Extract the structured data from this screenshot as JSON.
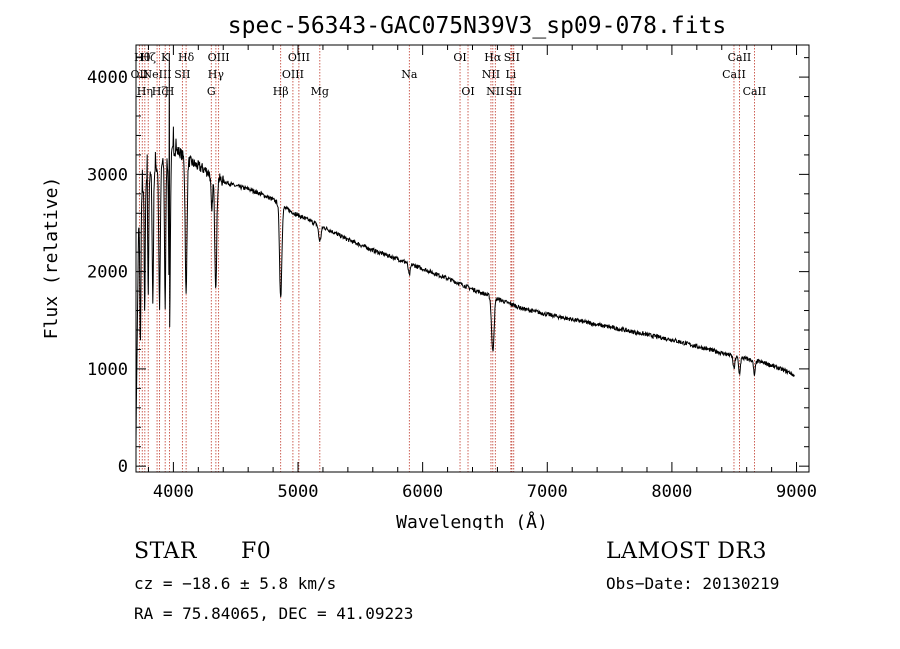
{
  "chart_data": {
    "type": "line",
    "title": "spec-56343-GAC075N39V3_sp09-078.fits",
    "xlabel": "Wavelength (Å)",
    "ylabel": "Flux (relative)",
    "xlim": [
      3700,
      9100
    ],
    "ylim": [
      -60,
      4330
    ],
    "xticks": [
      4000,
      5000,
      6000,
      7000,
      8000,
      9000
    ],
    "yticks": [
      0,
      1000,
      2000,
      3000,
      4000
    ],
    "continuum": [
      [
        3700,
        300
      ],
      [
        3720,
        2400
      ],
      [
        3750,
        2800
      ],
      [
        3800,
        2950
      ],
      [
        3850,
        3050
      ],
      [
        3900,
        3100
      ],
      [
        3950,
        3150
      ],
      [
        4000,
        3250
      ],
      [
        4050,
        3230
      ],
      [
        4100,
        3150
      ],
      [
        4150,
        3120
      ],
      [
        4200,
        3080
      ],
      [
        4250,
        3050
      ],
      [
        4300,
        3000
      ],
      [
        4400,
        2930
      ],
      [
        4500,
        2880
      ],
      [
        4600,
        2850
      ],
      [
        4700,
        2800
      ],
      [
        4800,
        2740
      ],
      [
        4900,
        2650
      ],
      [
        5000,
        2580
      ],
      [
        5200,
        2460
      ],
      [
        5400,
        2330
      ],
      [
        5600,
        2220
      ],
      [
        5800,
        2130
      ],
      [
        6000,
        2030
      ],
      [
        6200,
        1930
      ],
      [
        6400,
        1820
      ],
      [
        6600,
        1720
      ],
      [
        6800,
        1620
      ],
      [
        7000,
        1560
      ],
      [
        7500,
        1430
      ],
      [
        8000,
        1300
      ],
      [
        8500,
        1130
      ],
      [
        8750,
        1060
      ],
      [
        8950,
        960
      ],
      [
        8980,
        930
      ]
    ],
    "absorption": [
      {
        "center": 3735,
        "depth": 1400,
        "width": 4
      },
      {
        "center": 3770,
        "depth": 1300,
        "width": 4
      },
      {
        "center": 3798,
        "depth": 1200,
        "width": 4
      },
      {
        "center": 3835,
        "depth": 1350,
        "width": 5
      },
      {
        "center": 3889,
        "depth": 1450,
        "width": 6
      },
      {
        "center": 3934,
        "depth": 1500,
        "width": 5
      },
      {
        "center": 3969,
        "depth": 1800,
        "width": 6
      },
      {
        "center": 4102,
        "depth": 1400,
        "width": 7
      },
      {
        "center": 4308,
        "depth": 400,
        "width": 6
      },
      {
        "center": 4340,
        "depth": 1100,
        "width": 8
      },
      {
        "center": 4861,
        "depth": 950,
        "width": 9
      },
      {
        "center": 5175,
        "depth": 160,
        "width": 10
      },
      {
        "center": 5893,
        "depth": 120,
        "width": 8
      },
      {
        "center": 6563,
        "depth": 560,
        "width": 10
      },
      {
        "center": 8498,
        "depth": 130,
        "width": 7
      },
      {
        "center": 8542,
        "depth": 170,
        "width": 7
      },
      {
        "center": 8662,
        "depth": 150,
        "width": 7
      }
    ],
    "spikes": [
      {
        "x": 3968,
        "y": 4280
      },
      {
        "x": 3750,
        "y": 3100
      },
      {
        "x": 3790,
        "y": 3220
      },
      {
        "x": 3855,
        "y": 3210
      },
      {
        "x": 4000,
        "y": 3460
      },
      {
        "x": 4020,
        "y": 3400
      }
    ],
    "lines": [
      {
        "wave": 3727,
        "label": "OII",
        "row": 1
      },
      {
        "wave": 3750,
        "label": "Hθ",
        "row": 0
      },
      {
        "wave": 3771,
        "label": "Hη",
        "row": 2
      },
      {
        "wave": 3798,
        "label": "Hζ",
        "row": 0
      },
      {
        "wave": 3869,
        "label": "NeIII",
        "row": 1
      },
      {
        "wave": 3889,
        "label": "Hζ",
        "row": 2
      },
      {
        "wave": 3934,
        "label": "K",
        "row": 0
      },
      {
        "wave": 3969,
        "label": "H",
        "row": 2
      },
      {
        "wave": 4072,
        "label": "SII",
        "row": 1
      },
      {
        "wave": 4102,
        "label": "Hδ",
        "row": 0
      },
      {
        "wave": 4304,
        "label": "G",
        "row": 2
      },
      {
        "wave": 4341,
        "label": "Hγ",
        "row": 1
      },
      {
        "wave": 4363,
        "label": "OIII",
        "row": 0
      },
      {
        "wave": 4861,
        "label": "Hβ",
        "row": 2
      },
      {
        "wave": 4959,
        "label": "OIII",
        "row": 1
      },
      {
        "wave": 5007,
        "label": "OIII",
        "row": 0
      },
      {
        "wave": 5175,
        "label": "Mg",
        "row": 2
      },
      {
        "wave": 5893,
        "label": "Na",
        "row": 1
      },
      {
        "wave": 6300,
        "label": "OI",
        "row": 0
      },
      {
        "wave": 6364,
        "label": "OI",
        "row": 2
      },
      {
        "wave": 6548,
        "label": "NII",
        "row": 1
      },
      {
        "wave": 6563,
        "label": "Hα",
        "row": 0
      },
      {
        "wave": 6583,
        "label": "NII",
        "row": 2
      },
      {
        "wave": 6708,
        "label": "Li",
        "row": 1
      },
      {
        "wave": 6716,
        "label": "SII",
        "row": 0
      },
      {
        "wave": 6731,
        "label": "SII",
        "row": 2
      },
      {
        "wave": 8498,
        "label": "CaII",
        "row": 1
      },
      {
        "wave": 8542,
        "label": "CaII",
        "row": 0
      },
      {
        "wave": 8662,
        "label": "CaII",
        "row": 2
      }
    ]
  },
  "info": {
    "class_label": "STAR",
    "subclass": "F0",
    "survey": "LAMOST DR3",
    "cz_text": "cz = −18.6 ± 5.8 km/s",
    "obs_date_text": "Obs−Date: 20130219",
    "coords_text": "RA =  75.84065, DEC =  41.09223"
  }
}
